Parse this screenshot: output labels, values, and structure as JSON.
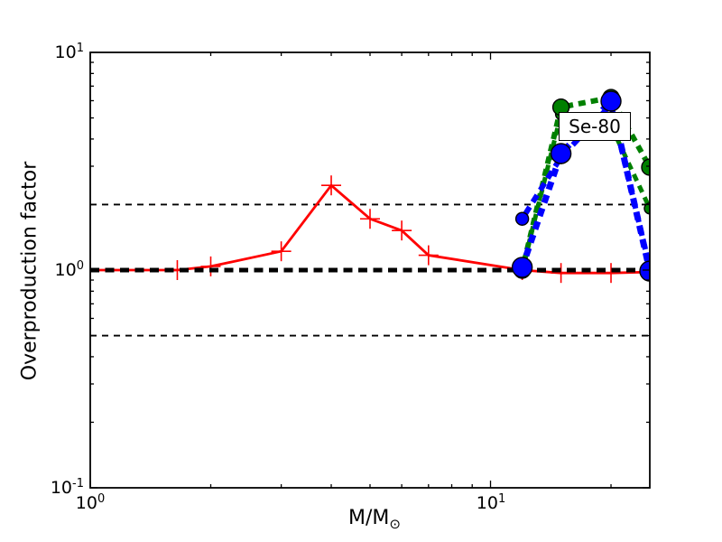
{
  "chart_data": {
    "type": "line",
    "title": "",
    "xlabel": "M/M⊙",
    "xlabel_base": "M/M",
    "xlabel_sub": "⊙",
    "ylabel": "Overproduction factor",
    "xscale": "log",
    "yscale": "log",
    "xlim": [
      1,
      25
    ],
    "ylim": [
      0.1,
      10
    ],
    "background": "#ffffff",
    "axis_color": "#000000",
    "annotation": {
      "text": "Se-80",
      "x": 15.5,
      "y": 4.3
    },
    "x_tick_labels": [
      {
        "base": "10",
        "exp": "0"
      },
      {
        "base": "10",
        "exp": "1"
      }
    ],
    "y_tick_labels": [
      {
        "base": "10",
        "exp": "1"
      },
      {
        "base": "10",
        "exp": "0"
      },
      {
        "base": "10",
        "exp": "-1"
      }
    ],
    "x_major_ticks": [
      1,
      10
    ],
    "x_minor_ticks": [
      2,
      3,
      4,
      5,
      6,
      7,
      8,
      9,
      20
    ],
    "y_major_ticks": [
      0.1,
      1,
      10
    ],
    "y_minor_ticks": [
      0.2,
      0.3,
      0.4,
      0.5,
      0.6,
      0.7,
      0.8,
      0.9,
      2,
      3,
      4,
      5,
      6,
      7,
      8,
      9
    ],
    "reference_lines": [
      {
        "y": 2.0,
        "color": "#000000",
        "linewidth": 1.8,
        "dash": [
          7,
          6
        ]
      },
      {
        "y": 0.5,
        "color": "#000000",
        "linewidth": 1.8,
        "dash": [
          7,
          6
        ]
      },
      {
        "y": 1.0,
        "color": "#000000",
        "linewidth": 5,
        "dash": [
          10,
          6.5
        ]
      }
    ],
    "series": [
      {
        "name": "red-solid-plus",
        "color": "#ff0000",
        "linewidth": 2.8,
        "dash": null,
        "dashoffset": 0,
        "marker": "plus",
        "markersize": 11,
        "x": [
          1.0,
          1.65,
          2.0,
          3.0,
          4.0,
          5.0,
          6.0,
          7.0,
          12.0,
          15.0,
          20.0,
          25.0
        ],
        "y": [
          1.0,
          1.0,
          1.04,
          1.22,
          2.45,
          1.72,
          1.52,
          1.17,
          1.0,
          0.97,
          0.97,
          0.98
        ]
      },
      {
        "name": "green-dashed-small",
        "color": "#008000",
        "linewidth": 5,
        "dash": [
          8,
          6
        ],
        "dashoffset": 0,
        "marker": "circle",
        "markersize": 6,
        "x": [
          12,
          15,
          20,
          25
        ],
        "y": [
          1.0,
          5.2,
          4.6,
          1.92
        ]
      },
      {
        "name": "green-dashed-large",
        "color": "#008000",
        "linewidth": 6,
        "dash": [
          8,
          6
        ],
        "dashoffset": 5,
        "marker": "circle",
        "markersize": 9,
        "x": [
          12,
          15,
          20,
          25
        ],
        "y": [
          1.0,
          5.6,
          6.2,
          2.97
        ]
      },
      {
        "name": "blue-dashed-small",
        "color": "#0000ff",
        "linewidth": 6,
        "dash": [
          9,
          6.5
        ],
        "dashoffset": 9,
        "marker": "circle",
        "markersize": 7,
        "x": [
          12,
          15,
          20,
          25
        ],
        "y": [
          1.72,
          3.3,
          5.75,
          1.02
        ]
      },
      {
        "name": "blue-dashed-large",
        "color": "#0000ff",
        "linewidth": 7,
        "dash": [
          9,
          6.5
        ],
        "dashoffset": 2,
        "marker": "circle",
        "markersize": 11,
        "x": [
          12,
          15,
          20,
          25
        ],
        "y": [
          1.03,
          3.43,
          5.97,
          0.99
        ]
      }
    ]
  }
}
